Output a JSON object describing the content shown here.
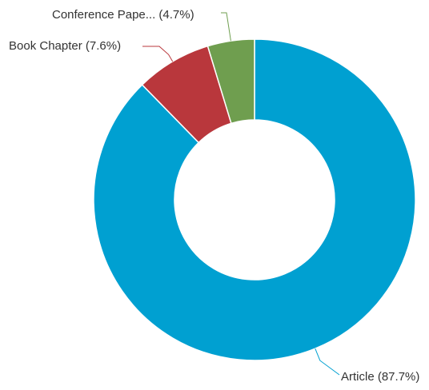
{
  "chart_data": {
    "type": "pie",
    "title": "",
    "donut": true,
    "legend": "none",
    "slices": [
      {
        "label": "Article",
        "value": 87.7,
        "display_label": "Article (87.7%)",
        "color": "#00a0d1"
      },
      {
        "label": "Book Chapter",
        "value": 7.6,
        "display_label": "Book Chapter (7.6%)",
        "color": "#b9373c"
      },
      {
        "label": "Conference Pape...",
        "value": 4.7,
        "display_label": "Conference Pape... (4.7%)",
        "color": "#6f9e4f"
      }
    ]
  }
}
